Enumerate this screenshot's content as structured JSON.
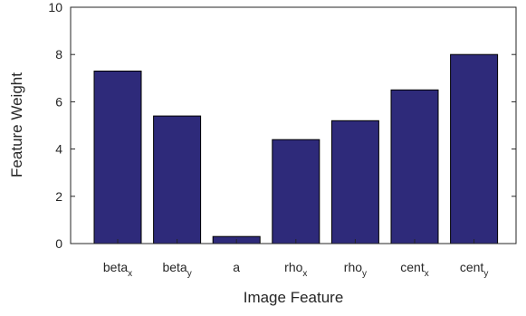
{
  "chart_data": {
    "type": "bar",
    "categories": [
      {
        "base": "beta",
        "sub": "x"
      },
      {
        "base": "beta",
        "sub": "y"
      },
      {
        "base": "a",
        "sub": ""
      },
      {
        "base": "rho",
        "sub": "x"
      },
      {
        "base": "rho",
        "sub": "y"
      },
      {
        "base": "cent",
        "sub": "x"
      },
      {
        "base": "cent",
        "sub": "y"
      }
    ],
    "values": [
      7.3,
      5.4,
      0.3,
      4.4,
      5.2,
      6.5,
      8.0
    ],
    "xlabel": "Image Feature",
    "ylabel": "Feature Weight",
    "ylim": [
      0,
      10
    ],
    "yticks": [
      0,
      2,
      4,
      6,
      8,
      10
    ],
    "bar_color": "#2e2a7a",
    "grid": false
  }
}
